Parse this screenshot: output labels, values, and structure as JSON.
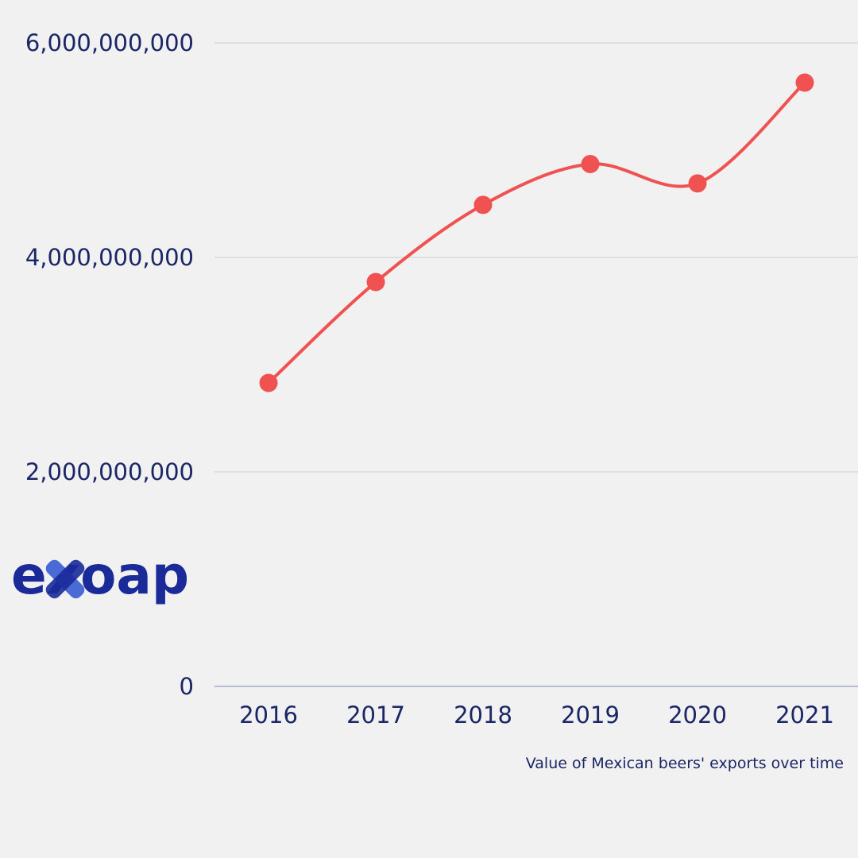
{
  "chart_data": {
    "type": "line",
    "title": "",
    "caption": "Value of Mexican beers' exports over time",
    "xlabel": "",
    "ylabel": "",
    "x": [
      "2016",
      "2017",
      "2018",
      "2019",
      "2020",
      "2021"
    ],
    "series": [
      {
        "values": [
          2830000000,
          3770000000,
          4490000000,
          4870000000,
          4690000000,
          5630000000
        ]
      }
    ],
    "ylim": [
      0,
      6000000000
    ],
    "yticks": [
      "0",
      "2,000,000,000",
      "4,000,000,000",
      "6,000,000,000"
    ],
    "ytick_values": [
      0,
      2000000000,
      4000000000,
      6000000000
    ],
    "grid": true,
    "legend": "none",
    "colors": {
      "line": "#f05252",
      "text": "#1b2666",
      "grid": "#d4d6de",
      "background": "#f1f1f1"
    }
  },
  "logo": {
    "text": "exoap",
    "icon": "x-mark-icon",
    "color": "#1a2a99",
    "accent": "#4a6bd6"
  }
}
